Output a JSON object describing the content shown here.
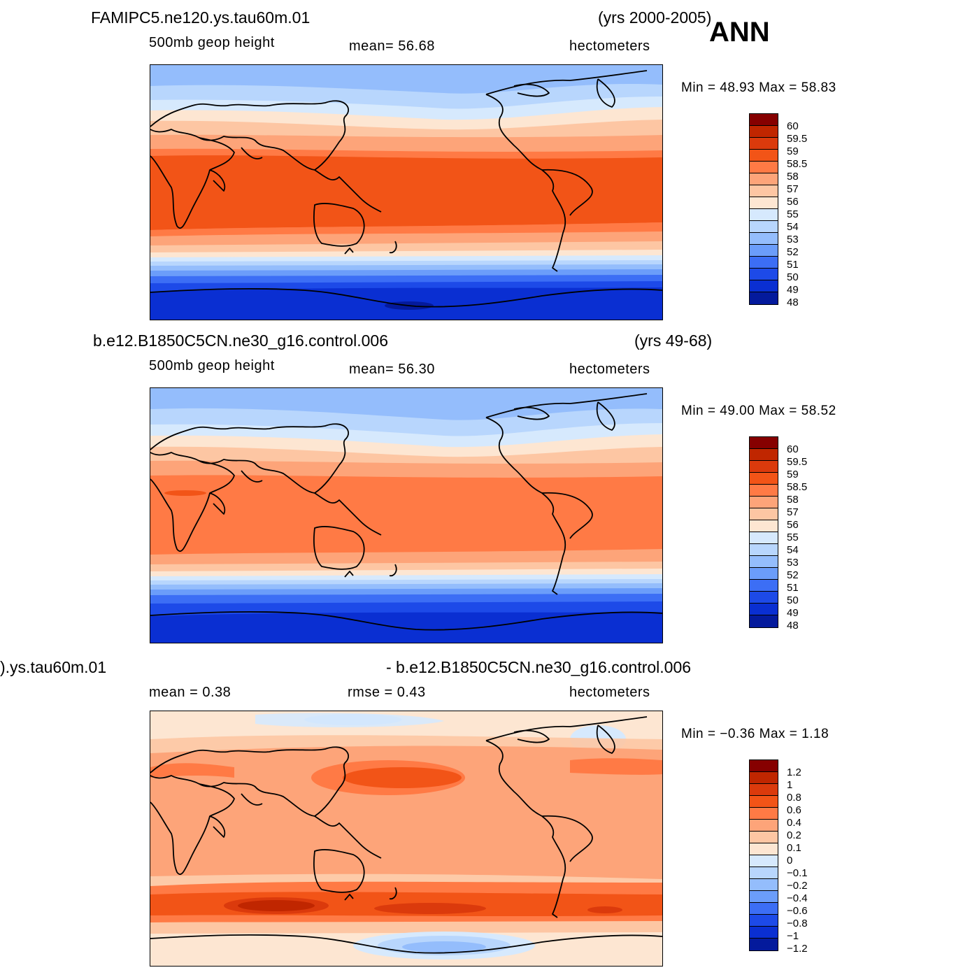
{
  "ann_label": "ANN",
  "panels": [
    {
      "title_left": "FAMIPC5.ne120.ys.tau60m.01",
      "title_right": "(yrs 2000-2005)",
      "sub_left": "500mb  geop  height",
      "sub_mid": "mean=   56.68",
      "sub_right": "hectometers",
      "minmax": "Min =    48.93  Max =    58.83",
      "cbar_labels": [
        "60",
        "59.5",
        "59",
        "58.5",
        "58",
        "57",
        "56",
        "55",
        "54",
        "53",
        "52",
        "51",
        "50",
        "49",
        "48"
      ]
    },
    {
      "title_left": "b.e12.B1850C5CN.ne30_g16.control.006",
      "title_right": "(yrs 49-68)",
      "sub_left": "500mb  geop  height",
      "sub_mid": "mean=   56.30",
      "sub_right": "hectometers",
      "minmax": "Min =    49.00  Max =    58.52",
      "cbar_labels": [
        "60",
        "59.5",
        "59",
        "58.5",
        "58",
        "57",
        "56",
        "55",
        "54",
        "53",
        "52",
        "51",
        "50",
        "49",
        "48"
      ]
    },
    {
      "title_left": ").ys.tau60m.01",
      "title_right": "- b.e12.B1850C5CN.ne30_g16.control.006",
      "sub_left": "mean =     0.38",
      "sub_mid": "rmse =     0.43",
      "sub_right": "hectometers",
      "minmax": "Min =    −0.36  Max =       1.18",
      "cbar_labels": [
        "1.2",
        "1",
        "0.8",
        "0.6",
        "0.4",
        "0.2",
        "0.1",
        "0",
        "−0.1",
        "−0.2",
        "−0.4",
        "−0.6",
        "−0.8",
        "−1",
        "−1.2"
      ]
    }
  ],
  "colors": {
    "palette": [
      "#860000",
      "#c02600",
      "#db3a0c",
      "#f25417",
      "#ff7a45",
      "#fda479",
      "#fdc6a3",
      "#fde6d2",
      "#d6e9fd",
      "#b8d6fd",
      "#94bdfc",
      "#6b9dfa",
      "#3c6ef5",
      "#1d4ae8",
      "#0a2fd2",
      "#041a9c",
      "#00007e"
    ]
  }
}
